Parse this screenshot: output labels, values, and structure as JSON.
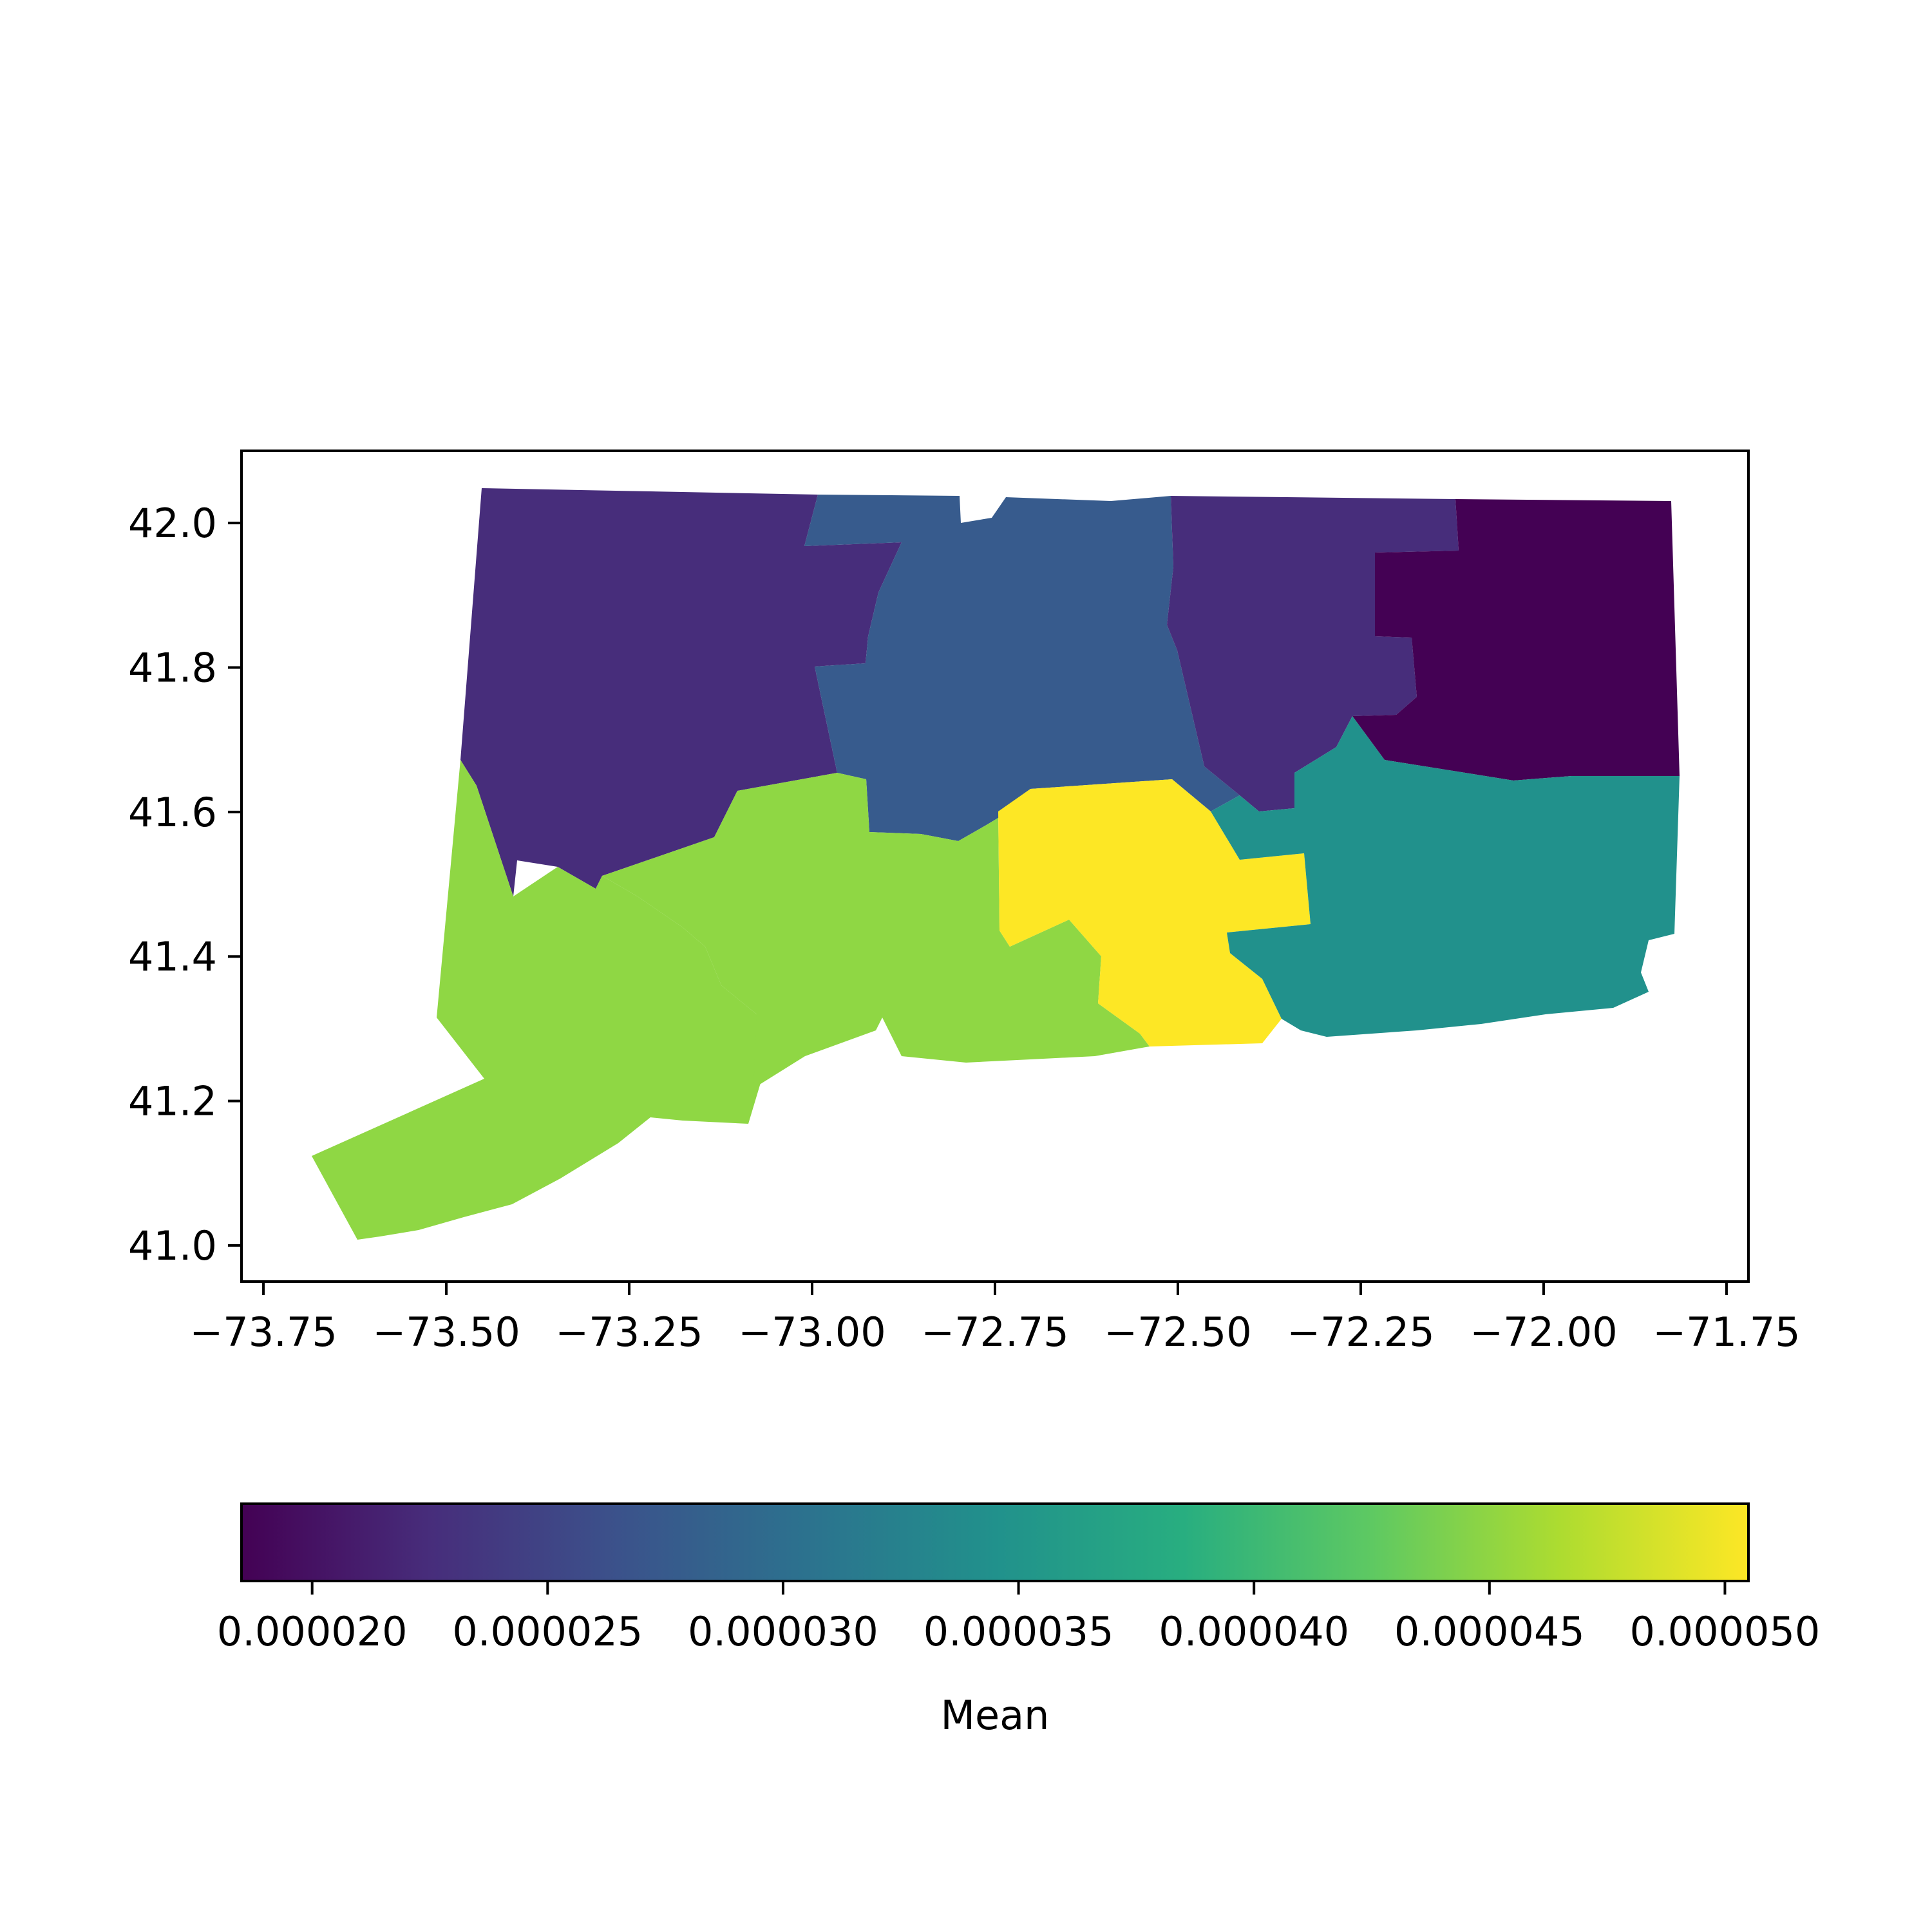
{
  "chart_data": {
    "type": "choropleth",
    "x_ticks": [
      "−73.75",
      "−73.50",
      "−73.25",
      "−73.00",
      "−72.75",
      "−72.50",
      "−72.25",
      "−72.00",
      "−71.75"
    ],
    "y_ticks": [
      "41.0",
      "41.2",
      "41.4",
      "41.6",
      "41.8",
      "42.0"
    ],
    "xlim": [
      -73.78,
      -71.72
    ],
    "ylim": [
      40.95,
      42.1
    ],
    "colorbar": {
      "label": "Mean",
      "colormap": "viridis",
      "range": [
        1.85e-05,
        5.05e-05
      ],
      "ticks": [
        "0.000020",
        "0.000025",
        "0.000030",
        "0.000035",
        "0.000040",
        "0.000045",
        "0.000050"
      ]
    },
    "regions": [
      {
        "id": "litchfield",
        "value": 2.25e-05,
        "color": "#472d7b"
      },
      {
        "id": "hartford",
        "value": 2.7e-05,
        "color": "#375b8d"
      },
      {
        "id": "tolland",
        "value": 2.25e-05,
        "color": "#472d7b"
      },
      {
        "id": "windham",
        "value": 1.85e-05,
        "color": "#440154"
      },
      {
        "id": "fairfield",
        "value": 4.6e-05,
        "color": "#8fd744"
      },
      {
        "id": "new-haven",
        "value": 4.6e-05,
        "color": "#8fd744"
      },
      {
        "id": "middlesex",
        "value": 5.05e-05,
        "color": "#fde725"
      },
      {
        "id": "new-london",
        "value": 3.4e-05,
        "color": "#21918c"
      }
    ]
  }
}
